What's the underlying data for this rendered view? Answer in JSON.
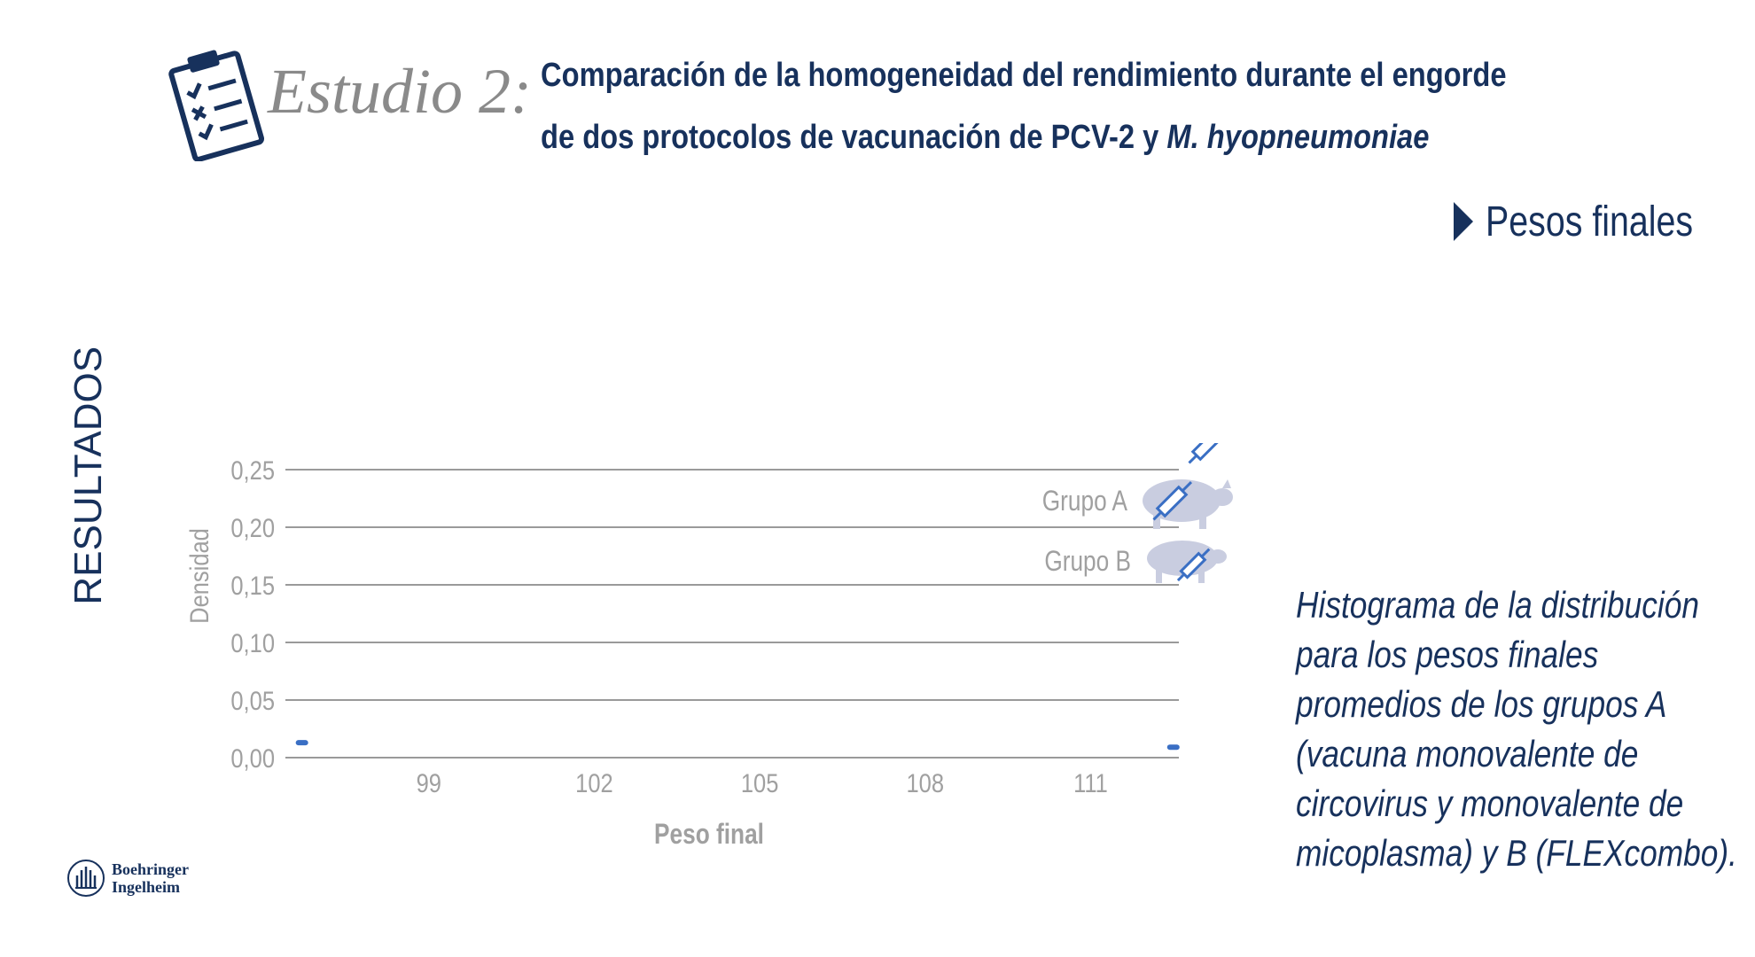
{
  "header": {
    "study_label": "Estudio 2:",
    "title_line1": "Comparación de la homogeneidad del rendimiento durante el engorde",
    "title_line2_plain": "de dos protocolos de vacunación de PCV-2 y ",
    "title_line2_italic": "M. hyopneumoniae"
  },
  "section_label": "RESULTADOS",
  "subheading": "Pesos finales",
  "description": [
    "Histograma de la distribución",
    "para los pesos finales",
    "promedios de los grupos A",
    "(vacuna monovalente de",
    "circovirus y monovalente de",
    "micoplasma) y B (FLEXcombo)."
  ],
  "logo": {
    "line1": "Boehringer",
    "line2": "Ingelheim"
  },
  "colors": {
    "navy": "#17315c",
    "gray": "#8a8a8a",
    "series_blue": "#3a6fc4",
    "pig": "#c9cde0"
  },
  "icons": [
    "clipboard-checklist-icon",
    "pig-icon",
    "syringe-icon",
    "play-triangle-icon"
  ],
  "chart_data": {
    "type": "line",
    "xlabel": "Peso final",
    "ylabel": "Densidad",
    "xlim": [
      96.4,
      112.6
    ],
    "ylim": [
      0,
      0.25
    ],
    "x_ticks": [
      99,
      102,
      105,
      108,
      111
    ],
    "x_tick_labels": [
      "99",
      "102",
      "105",
      "108",
      "111"
    ],
    "y_ticks": [
      0,
      0.05,
      0.1,
      0.15,
      0.2,
      0.25
    ],
    "y_tick_labels": [
      "0,00",
      "0,05",
      "0,10",
      "0,15",
      "0,20",
      "0,25"
    ],
    "grid": true,
    "legend_position": "top-right",
    "series": [
      {
        "name": "Grupo A",
        "color": "#3a6fc4",
        "x": [
          96.7
        ],
        "y": [
          0.013
        ]
      },
      {
        "name": "Grupo B",
        "color": "#3a6fc4",
        "x": [
          112.5
        ],
        "y": [
          0.009
        ]
      }
    ]
  }
}
